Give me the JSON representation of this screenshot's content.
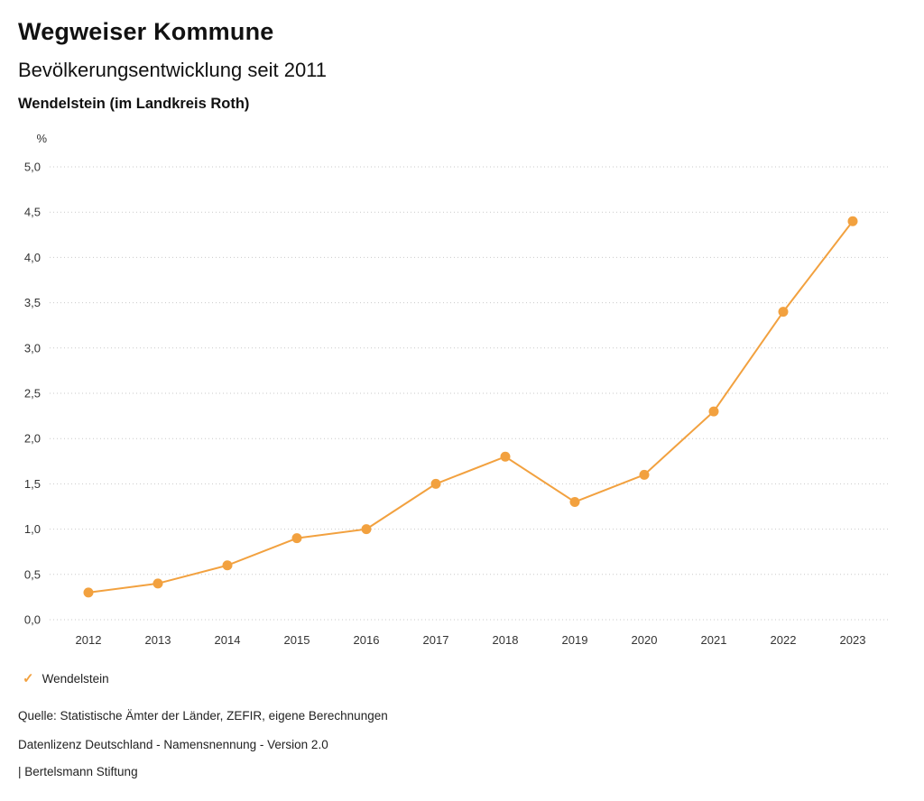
{
  "header": {
    "title": "Wegweiser Kommune",
    "subtitle": "Bevölkerungsentwicklung seit 2011",
    "region": "Wendelstein (im Landkreis Roth)"
  },
  "chart_data": {
    "type": "line",
    "title": "Bevölkerungsentwicklung seit 2011",
    "unit": "%",
    "categories": [
      "2012",
      "2013",
      "2014",
      "2015",
      "2016",
      "2017",
      "2018",
      "2019",
      "2020",
      "2021",
      "2022",
      "2023"
    ],
    "series": [
      {
        "name": "Wendelstein",
        "color": "#f2a13f",
        "values": [
          0.3,
          0.4,
          0.6,
          0.9,
          1.0,
          1.5,
          1.8,
          1.3,
          1.6,
          2.3,
          3.4,
          4.4
        ]
      }
    ],
    "ylim": [
      0.0,
      5.0
    ],
    "yticks": [
      {
        "v": 0.0,
        "label": "0,0"
      },
      {
        "v": 0.5,
        "label": "0,5"
      },
      {
        "v": 1.0,
        "label": "1,0"
      },
      {
        "v": 1.5,
        "label": "1,5"
      },
      {
        "v": 2.0,
        "label": "2,0"
      },
      {
        "v": 2.5,
        "label": "2,5"
      },
      {
        "v": 3.0,
        "label": "3,0"
      },
      {
        "v": 3.5,
        "label": "3,5"
      },
      {
        "v": 4.0,
        "label": "4,0"
      },
      {
        "v": 4.5,
        "label": "4,5"
      },
      {
        "v": 5.0,
        "label": "5,0"
      }
    ],
    "grid": "horizontal-dotted",
    "legend_position": "bottom-left"
  },
  "legend": {
    "items": [
      {
        "label": "Wendelstein",
        "marker": "check-icon",
        "color": "#f2a13f"
      }
    ]
  },
  "footer": {
    "source": "Quelle: Statistische Ämter der Länder, ZEFIR, eigene Berechnungen",
    "license": "Datenlizenz Deutschland - Namensnennung - Version 2.0",
    "attribution": "| Bertelsmann Stiftung"
  },
  "colors": {
    "series": "#f2a13f",
    "grid": "#c9c9c9",
    "text": "#333333"
  }
}
